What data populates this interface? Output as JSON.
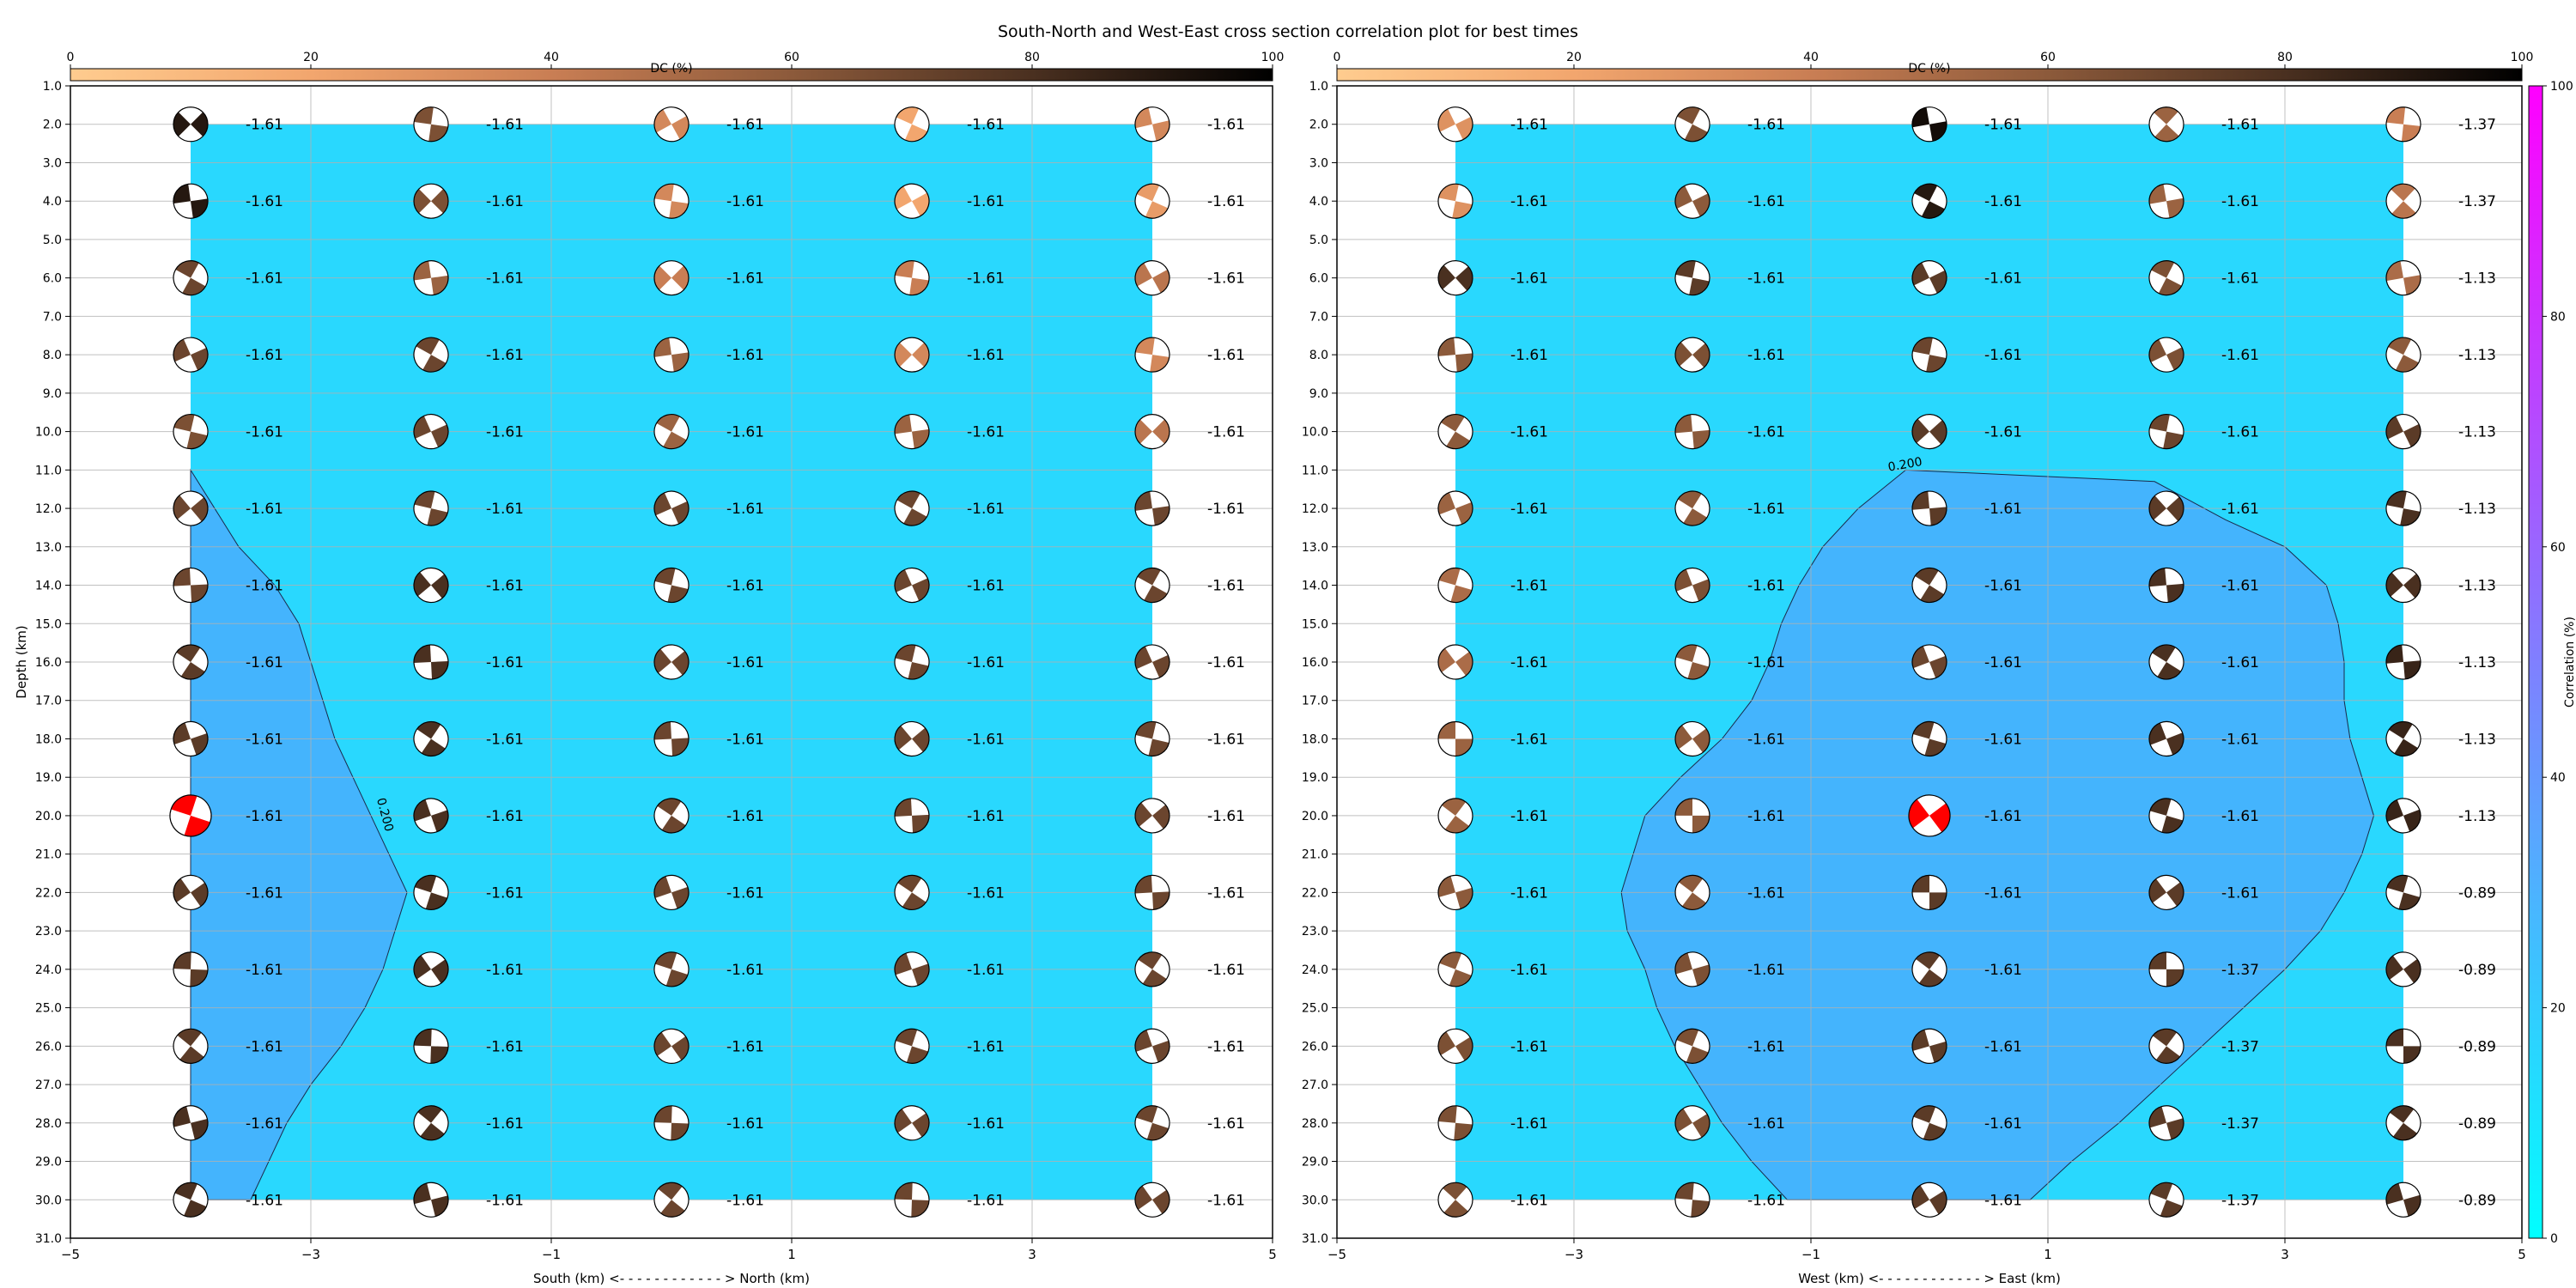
{
  "figure": {
    "title": "South-North and West-East cross section correlation plot for best times",
    "corr_colorbar": {
      "label": "Correlation (%)",
      "ticks": [
        0,
        20,
        40,
        60,
        80,
        100
      ],
      "colors": {
        "low": "#00ffff",
        "high": "#ff00ff"
      }
    }
  },
  "colors": {
    "fill_base": "#29d8fe",
    "fill_contour": "#44b4fd",
    "highlight_beachball": "#ff0000",
    "dc_colormap": [
      "#ffcc8f",
      "#f2a66e",
      "#c97e54",
      "#8c5a3b",
      "#4a3020",
      "#000000"
    ]
  },
  "chart_data": [
    {
      "type": "heatmap",
      "title": "",
      "xlabel": "South (km) <- - - - - - - - - - - - > North (km)",
      "ylabel": "Depth (km)",
      "xlim": [
        -5,
        5
      ],
      "ylim": [
        31,
        1
      ],
      "x_ticks": [
        -5,
        -3,
        -1,
        1,
        3,
        5
      ],
      "y_ticks": [
        "1.0",
        "2.0",
        "3.0",
        "4.0",
        "5.0",
        "6.0",
        "7.0",
        "8.0",
        "9.0",
        "10.0",
        "11.0",
        "12.0",
        "13.0",
        "14.0",
        "15.0",
        "16.0",
        "17.0",
        "18.0",
        "19.0",
        "20.0",
        "21.0",
        "22.0",
        "23.0",
        "24.0",
        "25.0",
        "26.0",
        "27.0",
        "28.0",
        "29.0",
        "30.0",
        "31.0"
      ],
      "grid": true,
      "dc_colorbar": {
        "label": "DC (%)",
        "ticks": [
          0,
          20,
          40,
          60,
          80,
          100
        ]
      },
      "columns_x": [
        -4,
        -2,
        0,
        2,
        4
      ],
      "depths": [
        2,
        4,
        6,
        8,
        10,
        12,
        14,
        16,
        18,
        20,
        22,
        24,
        26,
        28,
        30
      ],
      "labels": [
        [
          "-1.61",
          "-1.61",
          "-1.61",
          "-1.61",
          "-1.61"
        ],
        [
          "-1.61",
          "-1.61",
          "-1.61",
          "-1.61",
          "-1.61"
        ],
        [
          "-1.61",
          "-1.61",
          "-1.61",
          "-1.61",
          "-1.61"
        ],
        [
          "-1.61",
          "-1.61",
          "-1.61",
          "-1.61",
          "-1.61"
        ],
        [
          "-1.61",
          "-1.61",
          "-1.61",
          "-1.61",
          "-1.61"
        ],
        [
          "-1.61",
          "-1.61",
          "-1.61",
          "-1.61",
          "-1.61"
        ],
        [
          "-1.61",
          "-1.61",
          "-1.61",
          "-1.61",
          "-1.61"
        ],
        [
          "-1.61",
          "-1.61",
          "-1.61",
          "-1.61",
          "-1.61"
        ],
        [
          "-1.61",
          "-1.61",
          "-1.61",
          "-1.61",
          "-1.61"
        ],
        [
          "-1.61",
          "-1.61",
          "-1.61",
          "-1.61",
          "-1.61"
        ],
        [
          "-1.61",
          "-1.61",
          "-1.61",
          "-1.61",
          "-1.61"
        ],
        [
          "-1.61",
          "-1.61",
          "-1.61",
          "-1.61",
          "-1.61"
        ],
        [
          "-1.61",
          "-1.61",
          "-1.61",
          "-1.61",
          "-1.61"
        ],
        [
          "-1.61",
          "-1.61",
          "-1.61",
          "-1.61",
          "-1.61"
        ],
        [
          "-1.61",
          "-1.61",
          "-1.61",
          "-1.61",
          "-1.61"
        ]
      ],
      "dc_percent": [
        [
          90,
          65,
          35,
          20,
          35
        ],
        [
          90,
          65,
          35,
          20,
          25
        ],
        [
          70,
          55,
          40,
          40,
          45
        ],
        [
          70,
          70,
          55,
          35,
          35
        ],
        [
          65,
          70,
          55,
          55,
          45
        ],
        [
          70,
          70,
          70,
          70,
          70
        ],
        [
          70,
          80,
          70,
          70,
          70
        ],
        [
          75,
          80,
          70,
          70,
          70
        ],
        [
          75,
          80,
          70,
          70,
          70
        ],
        [
          75,
          80,
          70,
          70,
          70
        ],
        [
          75,
          80,
          70,
          70,
          70
        ],
        [
          75,
          80,
          70,
          70,
          70
        ],
        [
          75,
          80,
          70,
          70,
          70
        ],
        [
          80,
          80,
          70,
          70,
          70
        ],
        [
          80,
          80,
          70,
          70,
          70
        ]
      ],
      "best_solution": {
        "x": -4,
        "depth": 20
      },
      "contour": {
        "level_label": "0.200",
        "polygon": [
          [
            -4,
            11
          ],
          [
            -3.8,
            12
          ],
          [
            -3.6,
            13
          ],
          [
            -3.3,
            14
          ],
          [
            -3.1,
            15
          ],
          [
            -3.0,
            16
          ],
          [
            -2.9,
            17
          ],
          [
            -2.8,
            18
          ],
          [
            -2.65,
            19
          ],
          [
            -2.5,
            20
          ],
          [
            -2.35,
            21
          ],
          [
            -2.2,
            22
          ],
          [
            -2.3,
            23
          ],
          [
            -2.4,
            24
          ],
          [
            -2.55,
            25
          ],
          [
            -2.75,
            26
          ],
          [
            -3.0,
            27
          ],
          [
            -3.2,
            28
          ],
          [
            -3.35,
            29
          ],
          [
            -3.5,
            30
          ],
          [
            -4,
            30
          ]
        ]
      }
    },
    {
      "type": "heatmap",
      "title": "",
      "xlabel": "West (km) <- - - - - - - - - - - - > East (km)",
      "ylabel": "",
      "xlim": [
        -5,
        5
      ],
      "ylim": [
        31,
        1
      ],
      "x_ticks": [
        -5,
        -3,
        -1,
        1,
        3,
        5
      ],
      "y_ticks": [
        "1.0",
        "2.0",
        "3.0",
        "4.0",
        "5.0",
        "6.0",
        "7.0",
        "8.0",
        "9.0",
        "10.0",
        "11.0",
        "12.0",
        "13.0",
        "14.0",
        "15.0",
        "16.0",
        "17.0",
        "18.0",
        "19.0",
        "20.0",
        "21.0",
        "22.0",
        "23.0",
        "24.0",
        "25.0",
        "26.0",
        "27.0",
        "28.0",
        "29.0",
        "30.0",
        "31.0"
      ],
      "grid": true,
      "dc_colorbar": {
        "label": "DC (%)",
        "ticks": [
          0,
          20,
          40,
          60,
          80,
          100
        ]
      },
      "columns_x": [
        -4,
        -2,
        0,
        2,
        4
      ],
      "depths": [
        2,
        4,
        6,
        8,
        10,
        12,
        14,
        16,
        18,
        20,
        22,
        24,
        26,
        28,
        30
      ],
      "labels": [
        [
          "-1.61",
          "-1.61",
          "-1.61",
          "-1.61",
          "-1.37"
        ],
        [
          "-1.61",
          "-1.61",
          "-1.61",
          "-1.61",
          "-1.37"
        ],
        [
          "-1.61",
          "-1.61",
          "-1.61",
          "-1.61",
          "-1.13"
        ],
        [
          "-1.61",
          "-1.61",
          "-1.61",
          "-1.61",
          "-1.13"
        ],
        [
          "-1.61",
          "-1.61",
          "-1.61",
          "-1.61",
          "-1.13"
        ],
        [
          "-1.61",
          "-1.61",
          "-1.61",
          "-1.61",
          "-1.13"
        ],
        [
          "-1.61",
          "-1.61",
          "-1.61",
          "-1.61",
          "-1.13"
        ],
        [
          "-1.61",
          "-1.61",
          "-1.61",
          "-1.61",
          "-1.13"
        ],
        [
          "-1.61",
          "-1.61",
          "-1.61",
          "-1.61",
          "-1.13"
        ],
        [
          "-1.61",
          "-1.61",
          "-1.61",
          "-1.61",
          "-1.13"
        ],
        [
          "-1.61",
          "-1.61",
          "-1.61",
          "-1.61",
          "-0.89"
        ],
        [
          "-1.61",
          "-1.61",
          "-1.61",
          "-1.37",
          "-0.89"
        ],
        [
          "-1.61",
          "-1.61",
          "-1.61",
          "-1.37",
          "-0.89"
        ],
        [
          "-1.61",
          "-1.61",
          "-1.61",
          "-1.37",
          "-0.89"
        ],
        [
          "-1.61",
          "-1.61",
          "-1.61",
          "-1.37",
          "-0.89"
        ]
      ],
      "dc_percent": [
        [
          30,
          65,
          95,
          55,
          40
        ],
        [
          30,
          60,
          90,
          55,
          45
        ],
        [
          80,
          75,
          75,
          65,
          50
        ],
        [
          60,
          65,
          70,
          65,
          60
        ],
        [
          60,
          60,
          75,
          70,
          75
        ],
        [
          55,
          60,
          75,
          75,
          80
        ],
        [
          50,
          65,
          75,
          80,
          80
        ],
        [
          50,
          60,
          70,
          80,
          85
        ],
        [
          55,
          60,
          75,
          80,
          85
        ],
        [
          55,
          60,
          75,
          80,
          85
        ],
        [
          60,
          60,
          75,
          75,
          80
        ],
        [
          60,
          65,
          75,
          75,
          80
        ],
        [
          65,
          65,
          75,
          75,
          80
        ],
        [
          65,
          65,
          75,
          75,
          80
        ],
        [
          65,
          70,
          75,
          75,
          80
        ]
      ],
      "best_solution": {
        "x": 0,
        "depth": 20
      },
      "contour": {
        "level_label": "0.200",
        "polygon": [
          [
            -0.2,
            11
          ],
          [
            1.9,
            11.3
          ],
          [
            2.5,
            12.3
          ],
          [
            3.0,
            13
          ],
          [
            3.35,
            14
          ],
          [
            3.45,
            15
          ],
          [
            3.5,
            16
          ],
          [
            3.5,
            17
          ],
          [
            3.55,
            18
          ],
          [
            3.65,
            19
          ],
          [
            3.75,
            20
          ],
          [
            3.65,
            21
          ],
          [
            3.5,
            22
          ],
          [
            3.3,
            23
          ],
          [
            3.0,
            24
          ],
          [
            2.65,
            25
          ],
          [
            2.3,
            26
          ],
          [
            1.95,
            27
          ],
          [
            1.6,
            28
          ],
          [
            1.2,
            29
          ],
          [
            0.85,
            30
          ],
          [
            -1.2,
            30
          ],
          [
            -1.5,
            29
          ],
          [
            -1.75,
            28
          ],
          [
            -1.95,
            27
          ],
          [
            -2.15,
            26
          ],
          [
            -2.3,
            25
          ],
          [
            -2.4,
            24
          ],
          [
            -2.55,
            23
          ],
          [
            -2.6,
            22
          ],
          [
            -2.5,
            21
          ],
          [
            -2.4,
            20
          ],
          [
            -2.1,
            19
          ],
          [
            -1.75,
            18
          ],
          [
            -1.5,
            17
          ],
          [
            -1.35,
            16
          ],
          [
            -1.25,
            15
          ],
          [
            -1.1,
            14
          ],
          [
            -0.9,
            13
          ],
          [
            -0.6,
            12
          ]
        ]
      }
    }
  ]
}
